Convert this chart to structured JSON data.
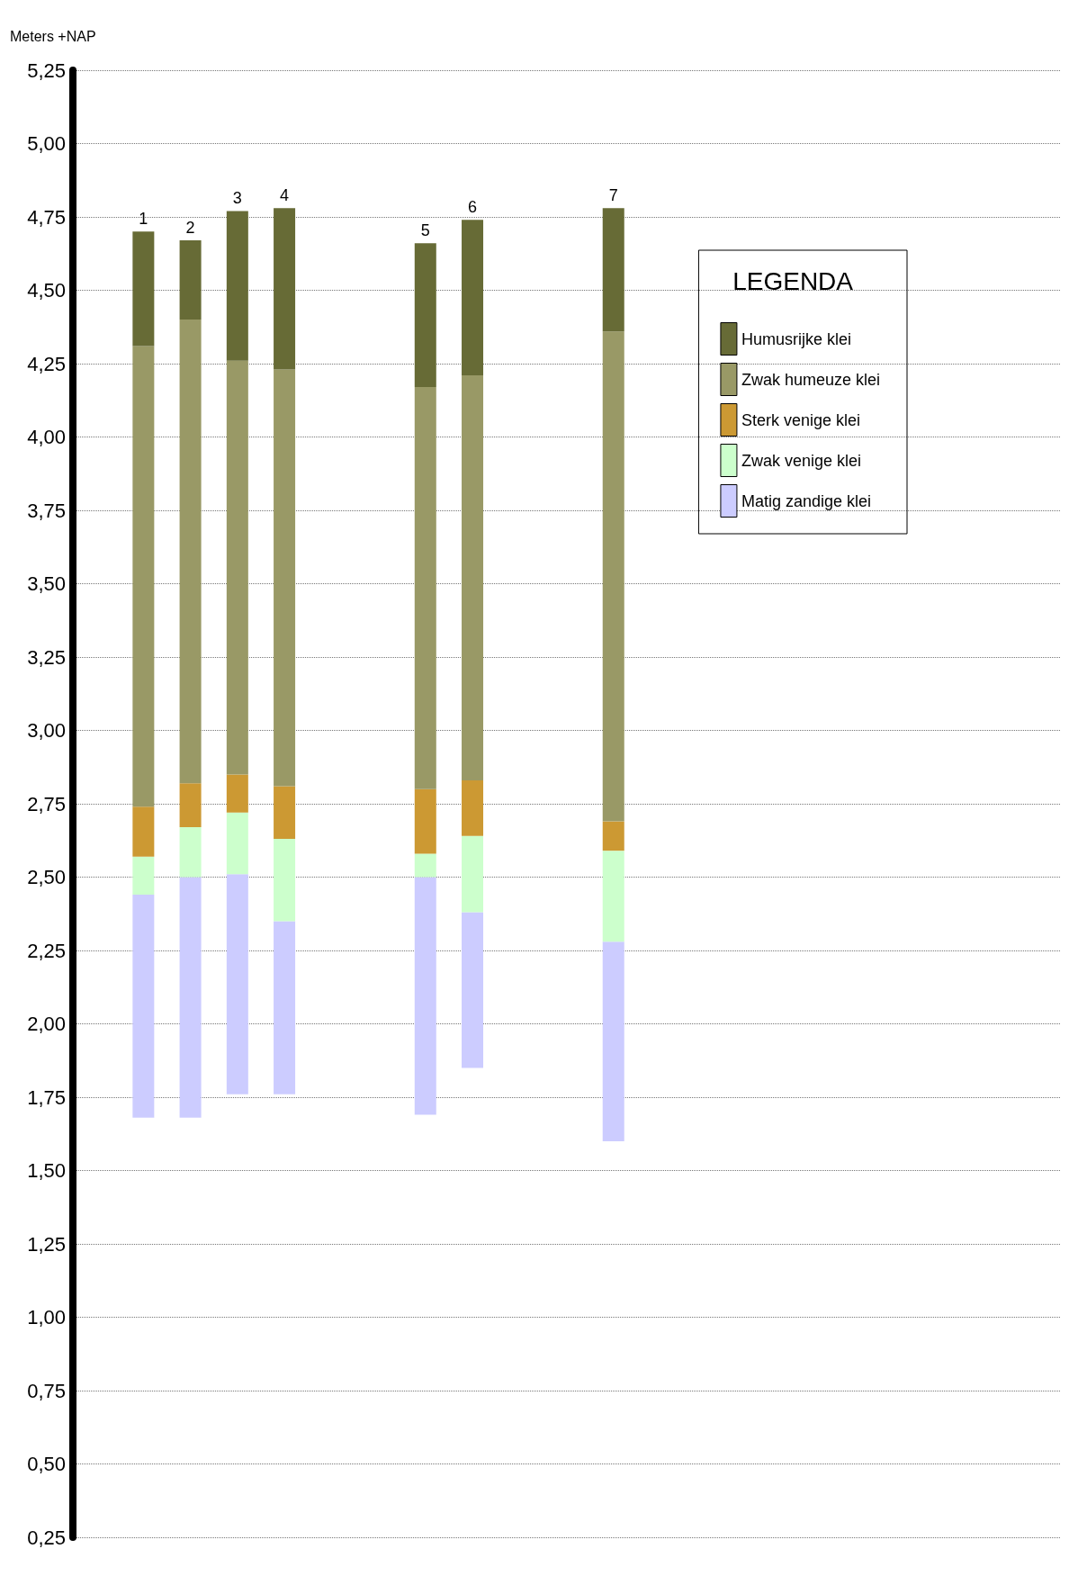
{
  "chart_data": {
    "type": "bar",
    "ylabel": "Meters +NAP",
    "legend_title": "LEGENDA",
    "legend": "right",
    "categories": [
      null,
      "1",
      "2",
      "3",
      "4",
      null,
      null,
      "5",
      "6",
      null,
      null,
      "7",
      null,
      null,
      null,
      null,
      null,
      null,
      null,
      null,
      null
    ],
    "series": [
      {
        "name": "Matig zandige klei",
        "color": "#ccccff",
        "base": [
          null,
          1.68,
          1.68,
          1.76,
          1.76,
          null,
          null,
          1.69,
          1.85,
          null,
          null,
          1.6,
          null,
          null,
          null,
          null,
          null,
          null,
          null,
          null,
          null
        ],
        "values": [
          null,
          0.76,
          0.82,
          0.75,
          0.59,
          null,
          null,
          0.81,
          0.53,
          null,
          null,
          0.68,
          null,
          null,
          null,
          null,
          null,
          null,
          null,
          null,
          null
        ]
      },
      {
        "name": "Zwak venige klei",
        "color": "#ccffcc",
        "base": [
          null,
          2.44,
          2.5,
          2.51,
          2.35,
          null,
          null,
          2.5,
          2.38,
          null,
          null,
          2.28,
          null,
          null,
          null,
          null,
          null,
          null,
          null,
          null,
          null
        ],
        "values": [
          null,
          0.13,
          0.17,
          0.21,
          0.28,
          null,
          null,
          0.08,
          0.26,
          null,
          null,
          0.31,
          null,
          null,
          null,
          null,
          null,
          null,
          null,
          null,
          null
        ]
      },
      {
        "name": "Sterk venige klei",
        "color": "#cc9933",
        "base": [
          null,
          2.57,
          2.67,
          2.72,
          2.63,
          null,
          null,
          2.58,
          2.64,
          null,
          null,
          2.59,
          null,
          null,
          null,
          null,
          null,
          null,
          null,
          null,
          null
        ],
        "values": [
          null,
          0.17,
          0.15,
          0.13,
          0.18,
          null,
          null,
          0.22,
          0.19,
          null,
          null,
          0.1,
          null,
          null,
          null,
          null,
          null,
          null,
          null,
          null,
          null
        ]
      },
      {
        "name": "Zwak humeuze klei",
        "color": "#999966",
        "base": [
          null,
          2.74,
          2.82,
          2.85,
          2.81,
          null,
          null,
          2.8,
          2.83,
          null,
          null,
          2.69,
          null,
          null,
          null,
          null,
          null,
          null,
          null,
          null,
          null
        ],
        "values": [
          null,
          1.57,
          1.58,
          1.41,
          1.42,
          null,
          null,
          1.37,
          1.38,
          null,
          null,
          1.67,
          null,
          null,
          null,
          null,
          null,
          null,
          null,
          null,
          null
        ]
      },
      {
        "name": "Humusrijke klei",
        "color": "#676b36",
        "base": [
          null,
          4.31,
          4.4,
          4.26,
          4.23,
          null,
          null,
          4.17,
          4.21,
          null,
          null,
          4.36,
          null,
          null,
          null,
          null,
          null,
          null,
          null,
          null,
          null
        ],
        "values": [
          null,
          0.39,
          0.27,
          0.51,
          0.55,
          null,
          null,
          0.49,
          0.53,
          null,
          null,
          0.42,
          null,
          null,
          null,
          null,
          null,
          null,
          null,
          null,
          null
        ]
      }
    ],
    "ylim": [
      0.25,
      5.25
    ],
    "yticks": [
      {
        "value": 0.25,
        "label": "0,25"
      },
      {
        "value": 0.5,
        "label": "0,50"
      },
      {
        "value": 0.75,
        "label": "0,75"
      },
      {
        "value": 1.0,
        "label": "1,00"
      },
      {
        "value": 1.25,
        "label": "1,25"
      },
      {
        "value": 1.5,
        "label": "1,50"
      },
      {
        "value": 1.75,
        "label": "1,75"
      },
      {
        "value": 2.0,
        "label": "2,00"
      },
      {
        "value": 2.25,
        "label": "2,25"
      },
      {
        "value": 2.5,
        "label": "2,50"
      },
      {
        "value": 2.75,
        "label": "2,75"
      },
      {
        "value": 3.0,
        "label": "3,00"
      },
      {
        "value": 3.25,
        "label": "3,25"
      },
      {
        "value": 3.5,
        "label": "3,50"
      },
      {
        "value": 3.75,
        "label": "3,75"
      },
      {
        "value": 4.0,
        "label": "4,00"
      },
      {
        "value": 4.25,
        "label": "4,25"
      },
      {
        "value": 4.5,
        "label": "4,50"
      },
      {
        "value": 4.75,
        "label": "4,75"
      },
      {
        "value": 5.0,
        "label": "5,00"
      },
      {
        "value": 5.25,
        "label": "5,25"
      }
    ],
    "grid": "y",
    "tick_labels": "y"
  }
}
